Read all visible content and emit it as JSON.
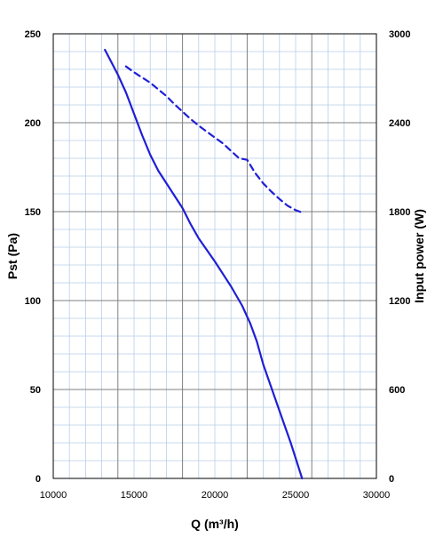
{
  "chart_data": {
    "type": "line",
    "xlabel": "Q (m³/h)",
    "ylabel": "Pst (Pa)",
    "y2label": "Input power  (W)",
    "xlim": [
      10000,
      30000
    ],
    "ylim": [
      0,
      250
    ],
    "y2lim": [
      0,
      3000
    ],
    "x_ticks": [
      10000,
      15000,
      20000,
      25000,
      30000
    ],
    "y_ticks": [
      0,
      50,
      100,
      150,
      200,
      250
    ],
    "y2_ticks": [
      0,
      600,
      1200,
      1800,
      2400,
      3000
    ],
    "grid": true,
    "colors": {
      "curve": "#1f1fd6",
      "minor_grid": "#b9cde8",
      "major_grid": "#808080"
    },
    "series": [
      {
        "axis": "left",
        "style": "solid",
        "points": [
          [
            13200,
            241
          ],
          [
            14000,
            227
          ],
          [
            14500,
            217
          ],
          [
            15000,
            205
          ],
          [
            15500,
            193
          ],
          [
            16000,
            182
          ],
          [
            16500,
            173
          ],
          [
            17000,
            166
          ],
          [
            17500,
            159
          ],
          [
            18000,
            152
          ],
          [
            18500,
            143
          ],
          [
            19000,
            135
          ],
          [
            20000,
            122
          ],
          [
            21000,
            108
          ],
          [
            21700,
            97
          ],
          [
            22200,
            87
          ],
          [
            22600,
            77
          ],
          [
            23000,
            64
          ],
          [
            24000,
            38
          ],
          [
            24700,
            20
          ],
          [
            25400,
            0
          ]
        ]
      },
      {
        "axis": "right",
        "style": "dashed",
        "points": [
          [
            14500,
            2780
          ],
          [
            15000,
            2740
          ],
          [
            15500,
            2705
          ],
          [
            16000,
            2670
          ],
          [
            16500,
            2625
          ],
          [
            17000,
            2580
          ],
          [
            17500,
            2525
          ],
          [
            18000,
            2475
          ],
          [
            18500,
            2425
          ],
          [
            19000,
            2380
          ],
          [
            19500,
            2340
          ],
          [
            20000,
            2300
          ],
          [
            20500,
            2260
          ],
          [
            21000,
            2210
          ],
          [
            21500,
            2160
          ],
          [
            22000,
            2150
          ],
          [
            22500,
            2060
          ],
          [
            23000,
            1990
          ],
          [
            23500,
            1935
          ],
          [
            24000,
            1885
          ],
          [
            24500,
            1840
          ],
          [
            25000,
            1810
          ],
          [
            25500,
            1790
          ]
        ]
      }
    ]
  }
}
